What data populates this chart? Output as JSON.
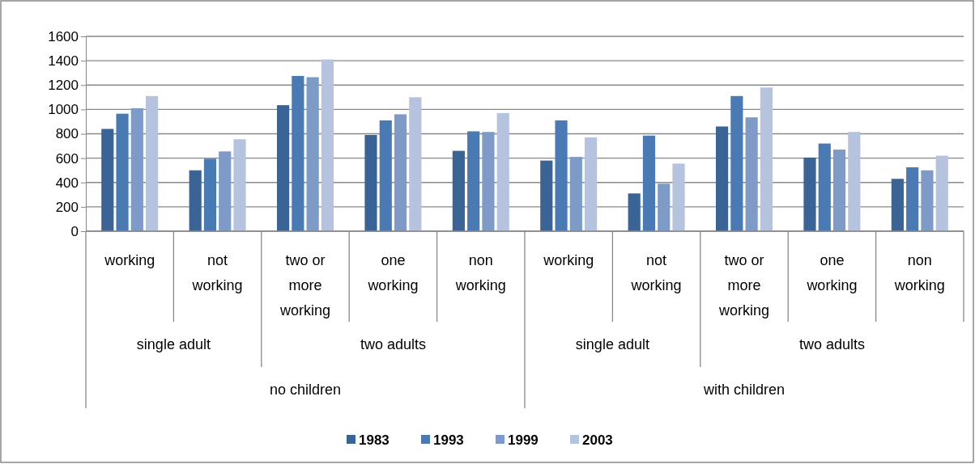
{
  "chart_data": {
    "type": "bar",
    "categories": [
      "working",
      "not working",
      "two or more working",
      "one working",
      "non working",
      "working",
      "not working",
      "two or more working",
      "one working",
      "non working"
    ],
    "series": [
      {
        "name": "1983",
        "color": "#3b6496",
        "values": [
          840,
          500,
          1035,
          790,
          660,
          580,
          310,
          860,
          605,
          430
        ]
      },
      {
        "name": "1993",
        "color": "#4a7ab4",
        "values": [
          965,
          595,
          1275,
          910,
          820,
          910,
          785,
          1110,
          720,
          525
        ]
      },
      {
        "name": "1999",
        "color": "#7e9bc8",
        "values": [
          1010,
          655,
          1265,
          960,
          815,
          610,
          390,
          935,
          670,
          500
        ]
      },
      {
        "name": "2003",
        "color": "#b5c3df",
        "values": [
          1110,
          755,
          1410,
          1100,
          970,
          770,
          555,
          1180,
          815,
          620
        ]
      }
    ],
    "annotations": [
      "single adult",
      "two adults",
      "single adult",
      "two adults",
      "no children",
      "with children"
    ],
    "ylim": [
      0,
      1600
    ],
    "yticks": [
      0,
      200,
      400,
      600,
      800,
      1000,
      1200,
      1400,
      1600
    ],
    "grid": "y",
    "legend": "bottom"
  }
}
